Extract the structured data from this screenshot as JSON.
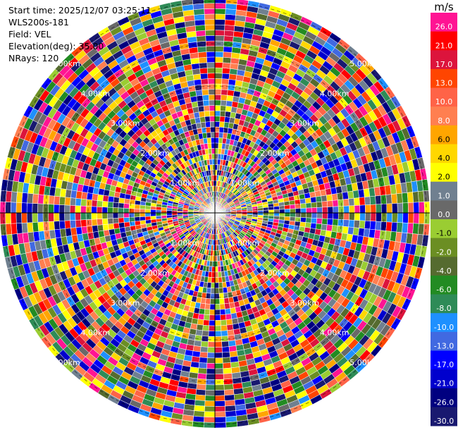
{
  "info": {
    "start_time": "Start time: 2025/12/07 03:25:11",
    "station": "WLS200s-181",
    "field": "Field: VEL",
    "elevation": "Elevation(deg): 35.00",
    "nrays": "NRays: 120"
  },
  "chart_data": {
    "type": "heatmap",
    "projection": "polar-ppi",
    "field": "VEL",
    "n_rays": 120,
    "elevation_deg": 35.0,
    "range_ring_labels": [
      "1.00km",
      "2.00km",
      "3.00km",
      "4.00km",
      "5.00km"
    ],
    "colorbar": {
      "unit": "m/s",
      "tick_labels": [
        "26.0",
        "21.0",
        "17.0",
        "13.0",
        "10.0",
        "8.0",
        "6.0",
        "4.0",
        "2.0",
        "1.0",
        "0.0",
        "-1.0",
        "-2.0",
        "-4.0",
        "-6.0",
        "-8.0",
        "-10.0",
        "-13.0",
        "-17.0",
        "-21.0",
        "-26.0",
        "-30.0"
      ],
      "colors": [
        "#ff1493",
        "#ff0000",
        "#dc143c",
        "#ff4500",
        "#ff6347",
        "#ff7f50",
        "#ffa500",
        "#ffd700",
        "#ffff00",
        "#708090",
        "#696969",
        "#9acd32",
        "#6b8e23",
        "#556b2f",
        "#228b22",
        "#2e8b57",
        "#1e90ff",
        "#4169e1",
        "#0000ff",
        "#0000cd",
        "#000080",
        "#191970"
      ]
    }
  }
}
